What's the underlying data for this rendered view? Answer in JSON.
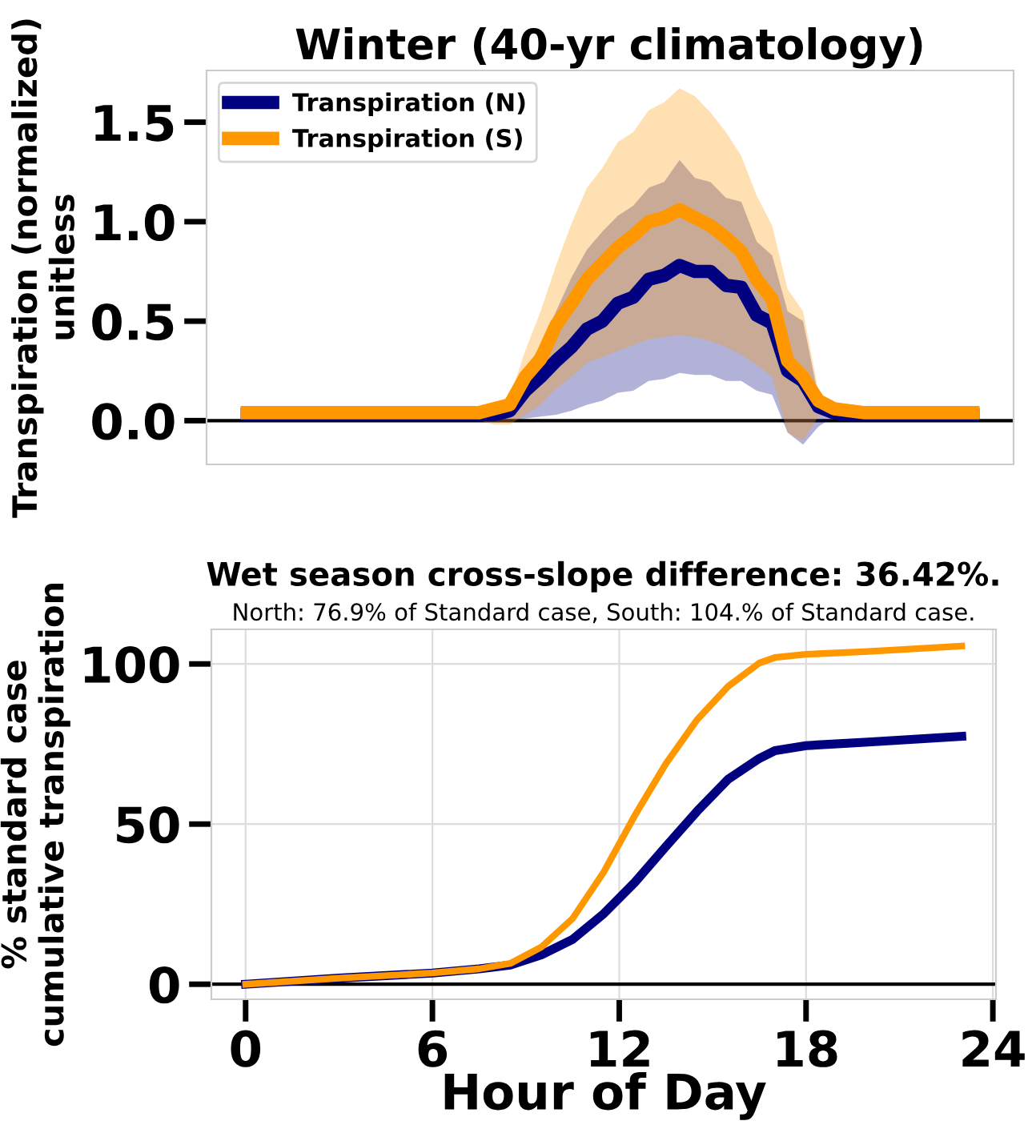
{
  "chart_data": [
    {
      "type": "line",
      "title": "Winter (40-yr climatology)",
      "ylabel": "Transpiration (normalized)\nunitless",
      "categories": [
        null,
        null,
        null,
        null,
        null,
        null,
        null,
        null,
        null,
        null,
        null,
        null,
        null,
        null,
        null,
        null,
        null,
        null,
        null,
        null,
        null,
        null,
        null,
        null,
        null,
        null,
        null,
        null,
        null,
        null,
        null,
        null,
        null,
        null,
        null,
        null,
        null,
        null,
        null,
        null,
        null,
        null,
        null,
        null,
        null,
        null,
        null,
        null
      ],
      "ylim": [
        -0.22,
        1.76
      ],
      "yticks": [
        {
          "value": 0,
          "label": "0.0"
        },
        {
          "value": 0.5,
          "label": "0.5"
        },
        {
          "value": 1,
          "label": "1.0"
        },
        {
          "value": 1.5,
          "label": "1.5"
        }
      ],
      "tick_labels": "y",
      "grid": false,
      "legend": "top left",
      "ref_lines": [
        {
          "axis": "y",
          "value": 0,
          "color": "#000000"
        }
      ],
      "series": [
        {
          "name": "Transpiration (N)",
          "color": "#000080",
          "values": [
            0.03,
            0.03,
            0.03,
            0.03,
            0.03,
            0.03,
            0.03,
            0.03,
            0.03,
            0.03,
            0.03,
            0.03,
            0.03,
            0.03,
            0.03,
            0.03,
            0.03,
            0.05,
            0.15,
            0.22,
            0.3,
            0.37,
            0.46,
            0.5,
            0.59,
            0.62,
            0.71,
            0.73,
            0.78,
            0.75,
            0.75,
            0.68,
            0.67,
            0.53,
            0.49,
            0.25,
            0.2,
            0.07,
            0.04,
            0.03,
            0.03,
            0.03,
            0.03,
            0.03,
            0.03,
            0.03,
            0.03,
            0.03
          ],
          "lower": [
            0.02,
            0.02,
            0.02,
            0.02,
            0.02,
            0.02,
            0.02,
            0.02,
            0.02,
            0.02,
            0.02,
            0.02,
            0.02,
            0.02,
            0.02,
            0.02,
            0.0,
            0.0,
            0.01,
            0.02,
            0.03,
            0.05,
            0.08,
            0.1,
            0.14,
            0.15,
            0.2,
            0.21,
            0.24,
            0.23,
            0.23,
            0.2,
            0.2,
            0.15,
            0.13,
            -0.06,
            -0.12,
            -0.03,
            0.02,
            0.02,
            0.02,
            0.02,
            0.02,
            0.02,
            0.02,
            0.02,
            0.02,
            0.02
          ],
          "upper": [
            0.04,
            0.04,
            0.04,
            0.04,
            0.04,
            0.04,
            0.04,
            0.04,
            0.04,
            0.04,
            0.04,
            0.04,
            0.04,
            0.04,
            0.04,
            0.04,
            0.06,
            0.09,
            0.25,
            0.38,
            0.55,
            0.72,
            0.86,
            0.95,
            1.03,
            1.08,
            1.17,
            1.2,
            1.31,
            1.22,
            1.2,
            1.12,
            1.1,
            0.9,
            0.83,
            0.55,
            0.5,
            0.12,
            0.06,
            0.05,
            0.04,
            0.04,
            0.04,
            0.04,
            0.04,
            0.04,
            0.04,
            0.04
          ]
        },
        {
          "name": "Transpiration (S)",
          "color": "#ff9800",
          "values": [
            0.04,
            0.04,
            0.04,
            0.04,
            0.04,
            0.04,
            0.04,
            0.04,
            0.04,
            0.04,
            0.04,
            0.04,
            0.04,
            0.04,
            0.04,
            0.04,
            0.06,
            0.08,
            0.22,
            0.31,
            0.48,
            0.59,
            0.71,
            0.79,
            0.87,
            0.93,
            1.0,
            1.02,
            1.06,
            1.02,
            0.98,
            0.92,
            0.85,
            0.71,
            0.61,
            0.3,
            0.22,
            0.1,
            0.06,
            0.05,
            0.04,
            0.04,
            0.04,
            0.04,
            0.04,
            0.04,
            0.04,
            0.04
          ],
          "lower": [
            0.02,
            0.02,
            0.02,
            0.02,
            0.02,
            0.02,
            0.02,
            0.02,
            0.02,
            0.02,
            0.02,
            0.02,
            0.02,
            0.02,
            0.02,
            0.0,
            -0.02,
            -0.02,
            0.03,
            0.08,
            0.16,
            0.22,
            0.29,
            0.32,
            0.35,
            0.38,
            0.41,
            0.42,
            0.43,
            0.42,
            0.4,
            0.37,
            0.33,
            0.28,
            0.22,
            -0.06,
            -0.1,
            0.02,
            0.02,
            0.02,
            0.02,
            0.02,
            0.02,
            0.02,
            0.02,
            0.02,
            0.02,
            0.02
          ],
          "upper": [
            0.06,
            0.06,
            0.06,
            0.06,
            0.06,
            0.06,
            0.06,
            0.06,
            0.06,
            0.06,
            0.06,
            0.06,
            0.06,
            0.06,
            0.06,
            0.05,
            0.09,
            0.12,
            0.35,
            0.55,
            0.78,
            0.99,
            1.17,
            1.27,
            1.4,
            1.45,
            1.56,
            1.6,
            1.67,
            1.63,
            1.55,
            1.45,
            1.33,
            1.13,
            0.98,
            0.66,
            0.55,
            0.15,
            0.07,
            0.06,
            0.06,
            0.06,
            0.06,
            0.06,
            0.06,
            0.06,
            0.06,
            0.06
          ]
        }
      ]
    },
    {
      "type": "line",
      "title": "Wet season cross-slope difference: 36.42%.",
      "subtitle": "North: 76.9% of Standard case, South: 104.% of Standard case.",
      "xlabel": "Hour of Day",
      "ylabel": "% standard case\ncumulative transpiration",
      "xlim": [
        -1.1,
        24.1
      ],
      "ylim": [
        -4.7,
        110.8
      ],
      "xticks": [
        0,
        6,
        12,
        18,
        24
      ],
      "yticks": [
        0,
        50,
        100
      ],
      "grid": true,
      "legend": false,
      "ref_lines": [
        {
          "axis": "y",
          "value": 0,
          "color": "#000000"
        }
      ],
      "series": [
        {
          "color": "#000080",
          "x": [
            0,
            3,
            6,
            7.5,
            8.5,
            9.5,
            10.5,
            11.5,
            12.5,
            13.5,
            14.5,
            15.5,
            16.5,
            17,
            18,
            20,
            23
          ],
          "values": [
            0,
            1.9,
            3.5,
            4.8,
            6,
            9.2,
            14,
            22,
            31.8,
            43,
            54,
            64,
            70.5,
            72.9,
            74.5,
            75.6,
            77.4
          ]
        },
        {
          "color": "#ff9800",
          "x": [
            0,
            3,
            6,
            7.5,
            8.5,
            9.5,
            10.5,
            11.5,
            12.5,
            13.5,
            14.5,
            15.5,
            16.5,
            17,
            18,
            20,
            23
          ],
          "values": [
            0,
            1.9,
            3.5,
            4.8,
            6.5,
            11.6,
            20.5,
            35,
            52.7,
            68.9,
            82.6,
            93,
            100.3,
            102,
            103,
            103.9,
            105.6
          ]
        }
      ]
    }
  ]
}
